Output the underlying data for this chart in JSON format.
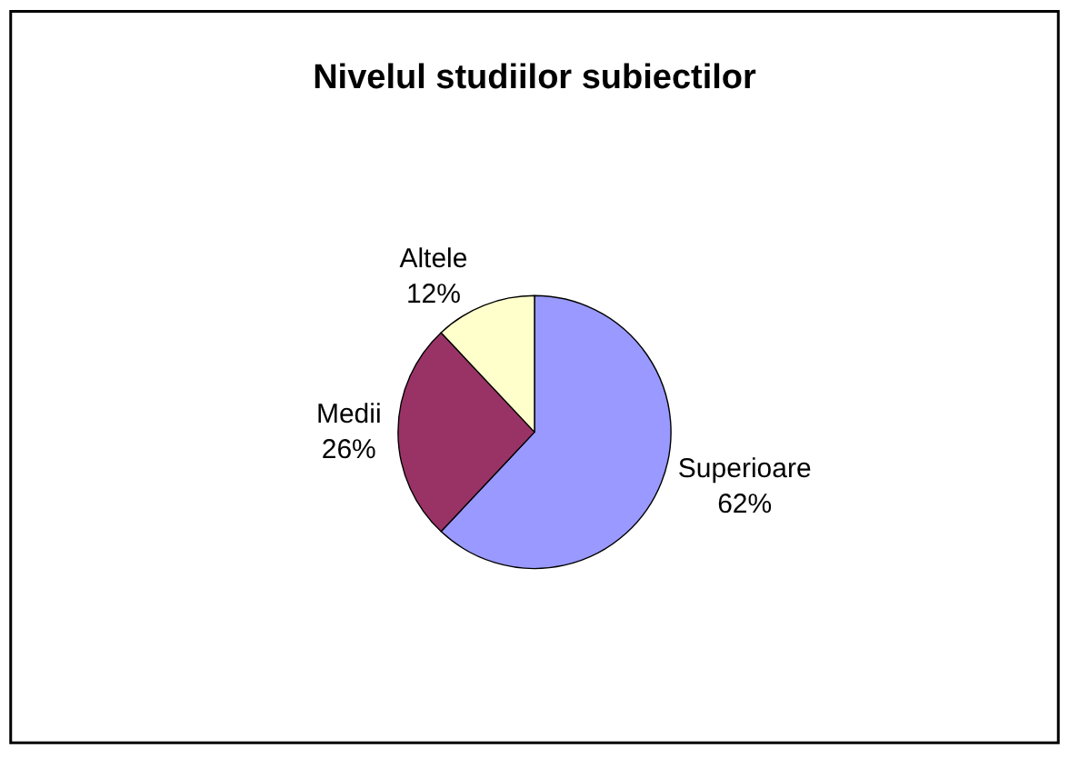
{
  "chart_data": {
    "type": "pie",
    "title": "Nivelul studiilor subiectilor",
    "categories": [
      "Superioare",
      "Medii",
      "Altele"
    ],
    "values": [
      62,
      26,
      12
    ],
    "value_labels": [
      "62%",
      "26%",
      "12%"
    ],
    "colors": [
      "#9999ff",
      "#993366",
      "#ffffcc"
    ],
    "legend": false
  }
}
